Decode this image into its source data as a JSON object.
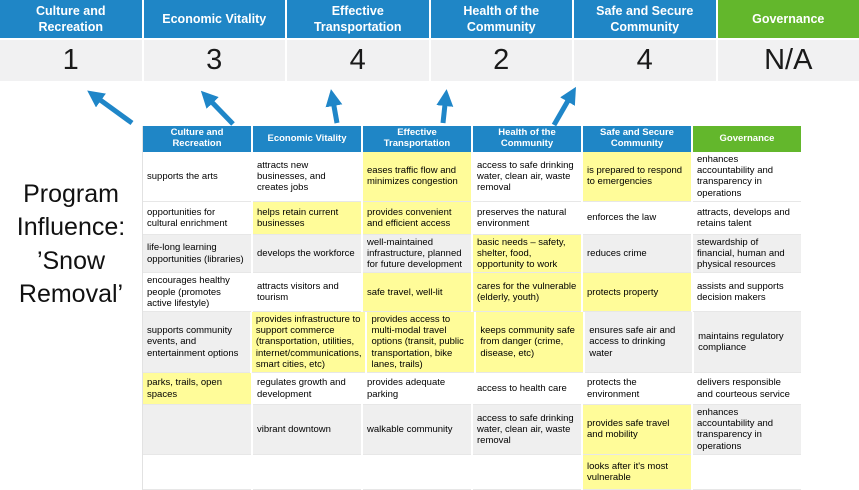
{
  "side_label": {
    "text": "Program Influence: ’Snow Removal’"
  },
  "colors": {
    "priority_blue": "#1F86C6",
    "governance_green": "#63B72C",
    "highlight_yellow": "#FFFC99",
    "banded_row_gray": "#EFEFEF",
    "score_band_gray": "#F1F1F2",
    "arrow_blue": "#1F86C8"
  },
  "icons": {
    "arrow": "up-arrow"
  },
  "scoreboard": {
    "columns": [
      {
        "label": "Culture and Recreation",
        "score": "1",
        "accent": "blue"
      },
      {
        "label": "Economic Vitality",
        "score": "3",
        "accent": "blue"
      },
      {
        "label": "Effective Transportation",
        "score": "4",
        "accent": "blue"
      },
      {
        "label": "Health of the Community",
        "score": "2",
        "accent": "blue"
      },
      {
        "label": "Safe and Secure Community",
        "score": "4",
        "accent": "blue"
      },
      {
        "label": "Governance",
        "score": "N/A",
        "accent": "green"
      }
    ]
  },
  "matrix": {
    "headers": [
      {
        "label": "Culture and Recreation",
        "accent": "blue"
      },
      {
        "label": "Economic Vitality",
        "accent": "blue"
      },
      {
        "label": "Effective Transportation",
        "accent": "blue"
      },
      {
        "label": "Health of the Community",
        "accent": "blue"
      },
      {
        "label": "Safe and Secure Community",
        "accent": "blue"
      },
      {
        "label": "Governance",
        "accent": "green"
      }
    ],
    "rows": [
      {
        "cells": [
          {
            "t": "supports the arts",
            "h": false
          },
          {
            "t": "attracts new businesses, and creates jobs",
            "h": false
          },
          {
            "t": "eases traffic flow and minimizes congestion",
            "h": true
          },
          {
            "t": "access to safe drinking water, clean air, waste removal",
            "h": false
          },
          {
            "t": "is prepared to respond to emergencies",
            "h": true
          },
          {
            "t": "enhances accountability and transparency in operations",
            "h": false
          }
        ]
      },
      {
        "cells": [
          {
            "t": "opportunities for cultural enrichment",
            "h": false
          },
          {
            "t": "helps retain current businesses",
            "h": true
          },
          {
            "t": "provides convenient and efficient access",
            "h": true
          },
          {
            "t": "preserves the natural environment",
            "h": false
          },
          {
            "t": "enforces the law",
            "h": false
          },
          {
            "t": "attracts, develops and retains talent",
            "h": false
          }
        ]
      },
      {
        "cells": [
          {
            "t": "life-long learning opportunities (libraries)",
            "h": false
          },
          {
            "t": "develops the workforce",
            "h": false
          },
          {
            "t": "well-maintained infrastructure, planned for future development",
            "h": false
          },
          {
            "t": "basic needs – safety, shelter, food, opportunity to work",
            "h": true
          },
          {
            "t": "reduces crime",
            "h": false
          },
          {
            "t": "stewardship of financial, human and physical resources",
            "h": false
          }
        ]
      },
      {
        "cells": [
          {
            "t": "encourages healthy people (promotes active lifestyle)",
            "h": false
          },
          {
            "t": "attracts visitors and tourism",
            "h": false
          },
          {
            "t": "safe travel, well-lit",
            "h": true
          },
          {
            "t": "cares for the vulnerable (elderly, youth)",
            "h": true
          },
          {
            "t": "protects property",
            "h": true
          },
          {
            "t": "assists and supports decision makers",
            "h": false
          }
        ]
      },
      {
        "cells": [
          {
            "t": "supports community events, and entertainment options",
            "h": false
          },
          {
            "t": "provides infrastructure to support commerce (transportation, utilities, internet/communications, smart cities, etc)",
            "h": true
          },
          {
            "t": "provides access to multi-modal travel options (transit, public transportation, bike lanes, trails)",
            "h": true
          },
          {
            "t": "keeps community safe from danger (crime, disease, etc)",
            "h": true
          },
          {
            "t": "ensures safe air and access to drinking water",
            "h": false
          },
          {
            "t": "maintains regulatory compliance",
            "h": false
          }
        ]
      },
      {
        "cells": [
          {
            "t": "parks, trails, open spaces",
            "h": true
          },
          {
            "t": "regulates growth and development",
            "h": false
          },
          {
            "t": "provides adequate parking",
            "h": false
          },
          {
            "t": "access to health care",
            "h": false
          },
          {
            "t": "protects the environment",
            "h": false
          },
          {
            "t": "delivers responsible and courteous service",
            "h": false
          }
        ]
      },
      {
        "cells": [
          {
            "t": "",
            "h": false
          },
          {
            "t": "vibrant downtown",
            "h": false
          },
          {
            "t": "walkable community",
            "h": false
          },
          {
            "t": "access to safe drinking water, clean air, waste removal",
            "h": false
          },
          {
            "t": "provides safe travel and mobility",
            "h": true
          },
          {
            "t": "enhances accountability and transparency in operations",
            "h": false
          }
        ]
      },
      {
        "cells": [
          {
            "t": "",
            "h": false
          },
          {
            "t": "",
            "h": false
          },
          {
            "t": "",
            "h": false
          },
          {
            "t": "",
            "h": false
          },
          {
            "t": "looks after it's most vulnerable",
            "h": true
          },
          {
            "t": "",
            "h": false
          }
        ]
      }
    ]
  }
}
